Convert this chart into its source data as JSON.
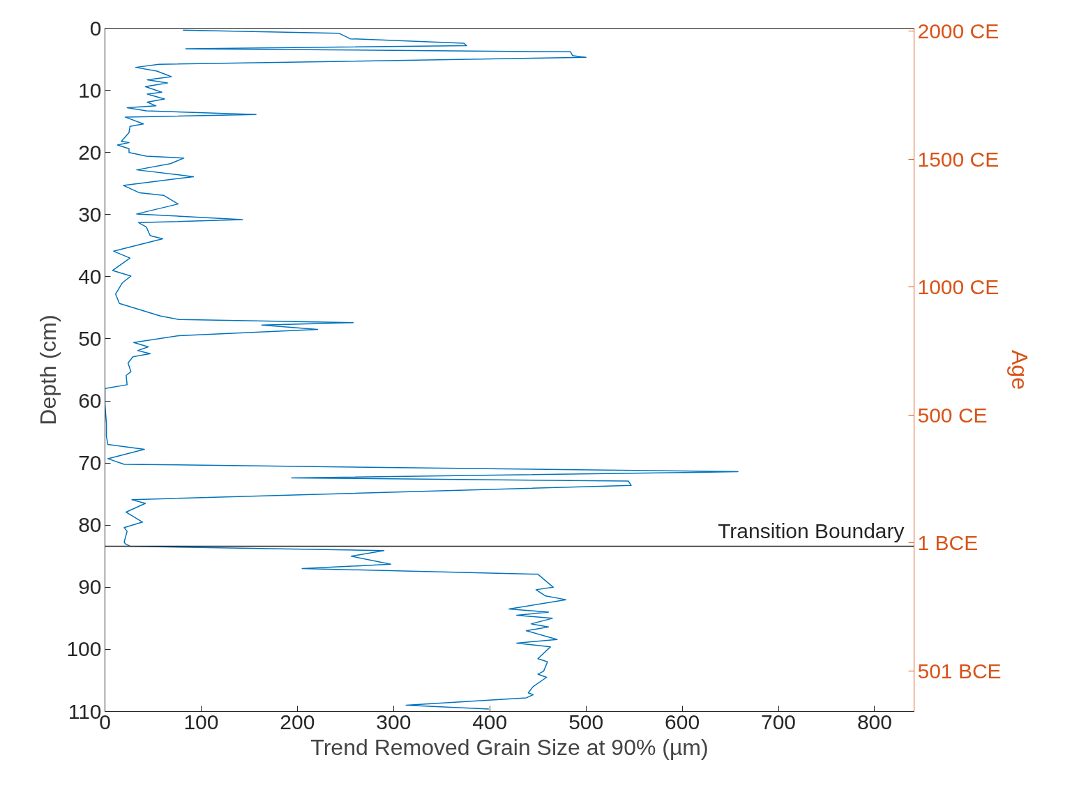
{
  "chart_data": {
    "type": "line",
    "xlabel": "Trend Removed Grain Size at 90% (µm)",
    "ylabel": "Depth (cm)",
    "y2label": "Age",
    "xlim": [
      0,
      841
    ],
    "xticks": [
      0,
      100,
      200,
      300,
      400,
      500,
      600,
      700,
      800
    ],
    "ylim": [
      110,
      0
    ],
    "yticks": [
      0,
      10,
      20,
      30,
      40,
      50,
      60,
      70,
      80,
      90,
      100,
      110
    ],
    "y2lim": [
      -659,
      2011
    ],
    "y2ticks": [
      {
        "value": 2000,
        "label": "2000 CE"
      },
      {
        "value": 1500,
        "label": "1500 CE"
      },
      {
        "value": 1000,
        "label": "1000 CE"
      },
      {
        "value": 500,
        "label": "500 CE"
      },
      {
        "value": -1,
        "label": "1 BCE"
      },
      {
        "value": -501,
        "label": "501 BCE"
      }
    ],
    "grid": false,
    "ref_lines": [
      {
        "axis": "y",
        "value": 83.4,
        "label": "Transition Boundary",
        "color": "#262626"
      }
    ],
    "series": [
      {
        "color": "#0072bd",
        "x": [
          81,
          243,
          255,
          373,
          376,
          84,
          484,
          486,
          500,
          56,
          32,
          54,
          69,
          44,
          65,
          42,
          59,
          44,
          62,
          44,
          53,
          23,
          43,
          157,
          21,
          40,
          26,
          25,
          17,
          25,
          13,
          25,
          25,
          43,
          82,
          68,
          33,
          92,
          19,
          36,
          61,
          76,
          33,
          143,
          35,
          43,
          47,
          60,
          9,
          26,
          8,
          27,
          18,
          11,
          15,
          57,
          77,
          258,
          163,
          221,
          77,
          30,
          45,
          34,
          47,
          29,
          24,
          27,
          22,
          23,
          0,
          0,
          1.5,
          1.5,
          3,
          41,
          3,
          20,
          658,
          194,
          544,
          547,
          28,
          42,
          22,
          39,
          20,
          23,
          20,
          21,
          26,
          290,
          256,
          297,
          205,
          450,
          466,
          448,
          458,
          479,
          420,
          461,
          428,
          465,
          443,
          461,
          438,
          470,
          428,
          463,
          450,
          460,
          456,
          450,
          459,
          445,
          440,
          445,
          438,
          313,
          399
        ],
        "values": [
          0.3,
          0.8,
          1.7,
          2.4,
          2.8,
          3.3,
          3.8,
          4.4,
          4.7,
          5.8,
          6.3,
          6.9,
          7.8,
          8.3,
          8.8,
          9.4,
          10.3,
          10.6,
          11.4,
          11.9,
          12.5,
          12.8,
          13.3,
          13.9,
          14.3,
          15.4,
          15.8,
          16.8,
          18.2,
          18.4,
          18.8,
          19.4,
          20,
          20.6,
          20.9,
          21.8,
          22.8,
          23.9,
          25.3,
          26.5,
          26.9,
          28.3,
          29.9,
          30.8,
          31.3,
          32,
          33.4,
          33.9,
          35.9,
          37,
          39,
          39.9,
          41,
          42.8,
          44.3,
          46.3,
          46.9,
          47.4,
          47.8,
          48.5,
          49.5,
          50.6,
          51.3,
          51.9,
          52.4,
          52.9,
          53.9,
          55.3,
          55.9,
          57.4,
          58,
          60.5,
          63.7,
          65.7,
          67,
          67.8,
          69.3,
          70.2,
          71.4,
          72.4,
          72.9,
          73.6,
          75.9,
          76.5,
          77.9,
          79.5,
          80.4,
          81,
          82.7,
          83,
          83.4,
          84.1,
          85,
          86.3,
          87,
          87.9,
          90,
          90.4,
          91.4,
          92,
          93.5,
          94,
          94.5,
          95,
          95.9,
          96.4,
          97,
          98.4,
          99,
          99.6,
          101.5,
          102,
          103.5,
          104,
          104.5,
          106,
          107,
          107.3,
          107.8,
          109,
          109.6
        ]
      }
    ]
  }
}
